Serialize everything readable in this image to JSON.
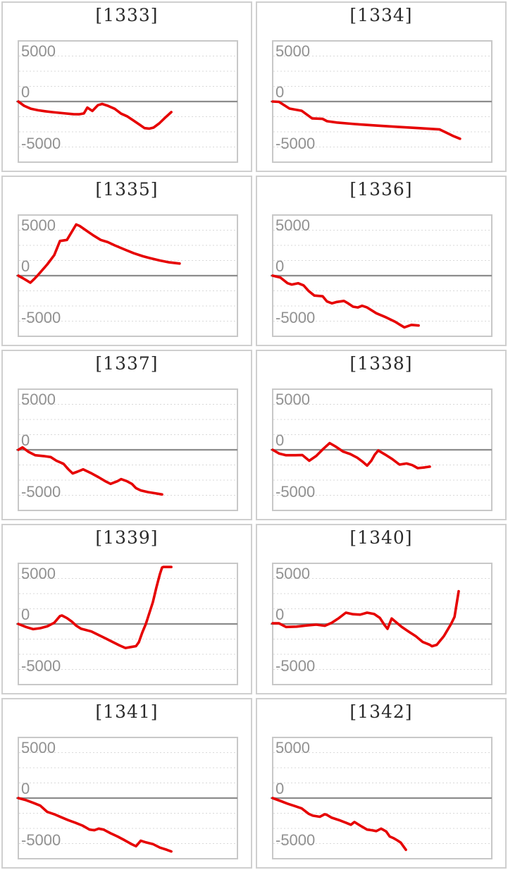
{
  "colors": {
    "line": "#e60000",
    "grid": "#d9d9d9",
    "zero_line": "#8c8c8c",
    "plot_border": "#c8c8c8",
    "cell_border": "#cfcfcf",
    "title": "#2b2b2b",
    "axis_label": "#919191",
    "background": "#ffffff"
  },
  "axis": {
    "tick_labels": [
      "5000",
      "0",
      "-5000"
    ],
    "y_max": 5000,
    "y_min": -5000,
    "grid_step": 1250,
    "grid_style": "dashed",
    "x_encoding": "fraction of plot width (no x-axis labels shown)"
  },
  "chart_data": [
    {
      "type": "line",
      "title": "[1333]",
      "ylim": [
        -5000,
        5000
      ],
      "points": [
        [
          0,
          0
        ],
        [
          0.026,
          -350
        ],
        [
          0.058,
          -600
        ],
        [
          0.09,
          -720
        ],
        [
          0.122,
          -800
        ],
        [
          0.154,
          -870
        ],
        [
          0.186,
          -930
        ],
        [
          0.219,
          -990
        ],
        [
          0.251,
          -1040
        ],
        [
          0.277,
          -1050
        ],
        [
          0.299,
          -980
        ],
        [
          0.315,
          -500
        ],
        [
          0.338,
          -780
        ],
        [
          0.363,
          -300
        ],
        [
          0.383,
          -200
        ],
        [
          0.408,
          -350
        ],
        [
          0.44,
          -600
        ],
        [
          0.469,
          -1000
        ],
        [
          0.498,
          -1230
        ],
        [
          0.527,
          -1580
        ],
        [
          0.553,
          -1900
        ],
        [
          0.576,
          -2190
        ],
        [
          0.598,
          -2230
        ],
        [
          0.617,
          -2150
        ],
        [
          0.643,
          -1800
        ],
        [
          0.669,
          -1350
        ],
        [
          0.698,
          -870
        ]
      ]
    },
    {
      "type": "line",
      "title": "[1334]",
      "ylim": [
        -5000,
        5000
      ],
      "points": [
        [
          0,
          0
        ],
        [
          0.029,
          -30
        ],
        [
          0.077,
          -580
        ],
        [
          0.132,
          -760
        ],
        [
          0.18,
          -1390
        ],
        [
          0.228,
          -1430
        ],
        [
          0.248,
          -1620
        ],
        [
          0.293,
          -1730
        ],
        [
          0.376,
          -1860
        ],
        [
          0.473,
          -1980
        ],
        [
          0.569,
          -2090
        ],
        [
          0.666,
          -2190
        ],
        [
          0.762,
          -2300
        ],
        [
          0.826,
          -2860
        ],
        [
          0.855,
          -3070
        ]
      ]
    },
    {
      "type": "line",
      "title": "[1335]",
      "ylim": [
        -5000,
        5000
      ],
      "points": [
        [
          0,
          0
        ],
        [
          0.023,
          -230
        ],
        [
          0.039,
          -400
        ],
        [
          0.055,
          -580
        ],
        [
          0.071,
          -300
        ],
        [
          0.087,
          0
        ],
        [
          0.132,
          930
        ],
        [
          0.164,
          1700
        ],
        [
          0.19,
          2860
        ],
        [
          0.222,
          2950
        ],
        [
          0.264,
          4220
        ],
        [
          0.28,
          4100
        ],
        [
          0.312,
          3700
        ],
        [
          0.344,
          3300
        ],
        [
          0.376,
          2950
        ],
        [
          0.408,
          2770
        ],
        [
          0.44,
          2500
        ],
        [
          0.486,
          2150
        ],
        [
          0.527,
          1850
        ],
        [
          0.569,
          1600
        ],
        [
          0.601,
          1450
        ],
        [
          0.646,
          1250
        ],
        [
          0.688,
          1100
        ],
        [
          0.736,
          1000
        ]
      ]
    },
    {
      "type": "line",
      "title": "[1336]",
      "ylim": [
        -5000,
        5000
      ],
      "points": [
        [
          0,
          0
        ],
        [
          0.035,
          -150
        ],
        [
          0.068,
          -620
        ],
        [
          0.087,
          -730
        ],
        [
          0.116,
          -620
        ],
        [
          0.141,
          -800
        ],
        [
          0.164,
          -1260
        ],
        [
          0.19,
          -1640
        ],
        [
          0.228,
          -1700
        ],
        [
          0.248,
          -2130
        ],
        [
          0.27,
          -2280
        ],
        [
          0.293,
          -2170
        ],
        [
          0.325,
          -2080
        ],
        [
          0.344,
          -2280
        ],
        [
          0.367,
          -2560
        ],
        [
          0.389,
          -2620
        ],
        [
          0.408,
          -2480
        ],
        [
          0.431,
          -2620
        ],
        [
          0.473,
          -3100
        ],
        [
          0.518,
          -3440
        ],
        [
          0.559,
          -3800
        ],
        [
          0.582,
          -4060
        ],
        [
          0.601,
          -4260
        ],
        [
          0.633,
          -4060
        ],
        [
          0.666,
          -4110
        ]
      ]
    },
    {
      "type": "line",
      "title": "[1337]",
      "ylim": [
        -5000,
        5000
      ],
      "points": [
        [
          0,
          0
        ],
        [
          0.019,
          200
        ],
        [
          0.045,
          -150
        ],
        [
          0.077,
          -450
        ],
        [
          0.116,
          -520
        ],
        [
          0.148,
          -600
        ],
        [
          0.174,
          -900
        ],
        [
          0.206,
          -1150
        ],
        [
          0.228,
          -1600
        ],
        [
          0.248,
          -1950
        ],
        [
          0.27,
          -1800
        ],
        [
          0.296,
          -1610
        ],
        [
          0.334,
          -1940
        ],
        [
          0.367,
          -2270
        ],
        [
          0.399,
          -2610
        ],
        [
          0.421,
          -2810
        ],
        [
          0.453,
          -2580
        ],
        [
          0.469,
          -2420
        ],
        [
          0.495,
          -2580
        ],
        [
          0.518,
          -2810
        ],
        [
          0.537,
          -3160
        ],
        [
          0.559,
          -3350
        ],
        [
          0.592,
          -3490
        ],
        [
          0.624,
          -3580
        ],
        [
          0.656,
          -3680
        ]
      ]
    },
    {
      "type": "line",
      "title": "[1338]",
      "ylim": [
        -5000,
        5000
      ],
      "points": [
        [
          0,
          0
        ],
        [
          0.029,
          -300
        ],
        [
          0.061,
          -450
        ],
        [
          0.103,
          -450
        ],
        [
          0.135,
          -430
        ],
        [
          0.167,
          -900
        ],
        [
          0.199,
          -500
        ],
        [
          0.232,
          100
        ],
        [
          0.26,
          550
        ],
        [
          0.289,
          250
        ],
        [
          0.322,
          -150
        ],
        [
          0.354,
          -350
        ],
        [
          0.386,
          -650
        ],
        [
          0.408,
          -950
        ],
        [
          0.431,
          -1300
        ],
        [
          0.45,
          -900
        ],
        [
          0.466,
          -400
        ],
        [
          0.482,
          -50
        ],
        [
          0.514,
          -400
        ],
        [
          0.547,
          -780
        ],
        [
          0.579,
          -1220
        ],
        [
          0.611,
          -1130
        ],
        [
          0.637,
          -1260
        ],
        [
          0.662,
          -1510
        ],
        [
          0.695,
          -1450
        ],
        [
          0.717,
          -1390
        ]
      ]
    },
    {
      "type": "line",
      "title": "[1339]",
      "ylim": [
        -5000,
        5000
      ],
      "points": [
        [
          0,
          0
        ],
        [
          0.035,
          -250
        ],
        [
          0.068,
          -430
        ],
        [
          0.1,
          -350
        ],
        [
          0.132,
          -200
        ],
        [
          0.164,
          100
        ],
        [
          0.19,
          650
        ],
        [
          0.199,
          700
        ],
        [
          0.222,
          480
        ],
        [
          0.244,
          200
        ],
        [
          0.264,
          -140
        ],
        [
          0.286,
          -390
        ],
        [
          0.309,
          -500
        ],
        [
          0.334,
          -620
        ],
        [
          0.367,
          -910
        ],
        [
          0.399,
          -1200
        ],
        [
          0.431,
          -1490
        ],
        [
          0.463,
          -1780
        ],
        [
          0.489,
          -1980
        ],
        [
          0.514,
          -1900
        ],
        [
          0.537,
          -1830
        ],
        [
          0.55,
          -1500
        ],
        [
          0.566,
          -700
        ],
        [
          0.582,
          0
        ],
        [
          0.598,
          900
        ],
        [
          0.614,
          1800
        ],
        [
          0.63,
          3000
        ],
        [
          0.646,
          4100
        ],
        [
          0.656,
          4650
        ],
        [
          0.662,
          4700
        ],
        [
          0.698,
          4700
        ]
      ]
    },
    {
      "type": "line",
      "title": "[1340]",
      "ylim": [
        -5000,
        5000
      ],
      "points": [
        [
          0,
          50
        ],
        [
          0.029,
          50
        ],
        [
          0.061,
          -250
        ],
        [
          0.109,
          -220
        ],
        [
          0.158,
          -120
        ],
        [
          0.199,
          -60
        ],
        [
          0.238,
          -150
        ],
        [
          0.27,
          100
        ],
        [
          0.302,
          480
        ],
        [
          0.334,
          930
        ],
        [
          0.367,
          800
        ],
        [
          0.399,
          770
        ],
        [
          0.431,
          930
        ],
        [
          0.463,
          820
        ],
        [
          0.489,
          500
        ],
        [
          0.511,
          -100
        ],
        [
          0.524,
          -400
        ],
        [
          0.543,
          450
        ],
        [
          0.566,
          100
        ],
        [
          0.588,
          -230
        ],
        [
          0.62,
          -620
        ],
        [
          0.653,
          -1010
        ],
        [
          0.685,
          -1490
        ],
        [
          0.717,
          -1720
        ],
        [
          0.727,
          -1840
        ],
        [
          0.749,
          -1720
        ],
        [
          0.781,
          -1010
        ],
        [
          0.814,
          0
        ],
        [
          0.83,
          580
        ],
        [
          0.849,
          2700
        ]
      ]
    },
    {
      "type": "line",
      "title": "[1341]",
      "ylim": [
        -5000,
        5000
      ],
      "points": [
        [
          0,
          0
        ],
        [
          0.035,
          -170
        ],
        [
          0.068,
          -390
        ],
        [
          0.1,
          -620
        ],
        [
          0.132,
          -1140
        ],
        [
          0.164,
          -1330
        ],
        [
          0.196,
          -1580
        ],
        [
          0.228,
          -1820
        ],
        [
          0.26,
          -2030
        ],
        [
          0.293,
          -2270
        ],
        [
          0.325,
          -2600
        ],
        [
          0.347,
          -2650
        ],
        [
          0.367,
          -2520
        ],
        [
          0.389,
          -2600
        ],
        [
          0.421,
          -2900
        ],
        [
          0.453,
          -3170
        ],
        [
          0.486,
          -3480
        ],
        [
          0.518,
          -3810
        ],
        [
          0.537,
          -3970
        ],
        [
          0.559,
          -3510
        ],
        [
          0.582,
          -3650
        ],
        [
          0.614,
          -3790
        ],
        [
          0.646,
          -4080
        ],
        [
          0.678,
          -4270
        ],
        [
          0.698,
          -4400
        ]
      ]
    },
    {
      "type": "line",
      "title": "[1342]",
      "ylim": [
        -5000,
        5000
      ],
      "points": [
        [
          0,
          0
        ],
        [
          0.035,
          -230
        ],
        [
          0.068,
          -460
        ],
        [
          0.1,
          -650
        ],
        [
          0.132,
          -850
        ],
        [
          0.164,
          -1290
        ],
        [
          0.183,
          -1450
        ],
        [
          0.215,
          -1540
        ],
        [
          0.238,
          -1330
        ],
        [
          0.248,
          -1390
        ],
        [
          0.27,
          -1620
        ],
        [
          0.302,
          -1810
        ],
        [
          0.334,
          -2030
        ],
        [
          0.357,
          -2200
        ],
        [
          0.373,
          -1970
        ],
        [
          0.405,
          -2330
        ],
        [
          0.431,
          -2600
        ],
        [
          0.453,
          -2650
        ],
        [
          0.473,
          -2720
        ],
        [
          0.495,
          -2520
        ],
        [
          0.518,
          -2750
        ],
        [
          0.534,
          -3170
        ],
        [
          0.55,
          -3290
        ],
        [
          0.569,
          -3490
        ],
        [
          0.585,
          -3680
        ],
        [
          0.608,
          -4260
        ]
      ]
    }
  ]
}
